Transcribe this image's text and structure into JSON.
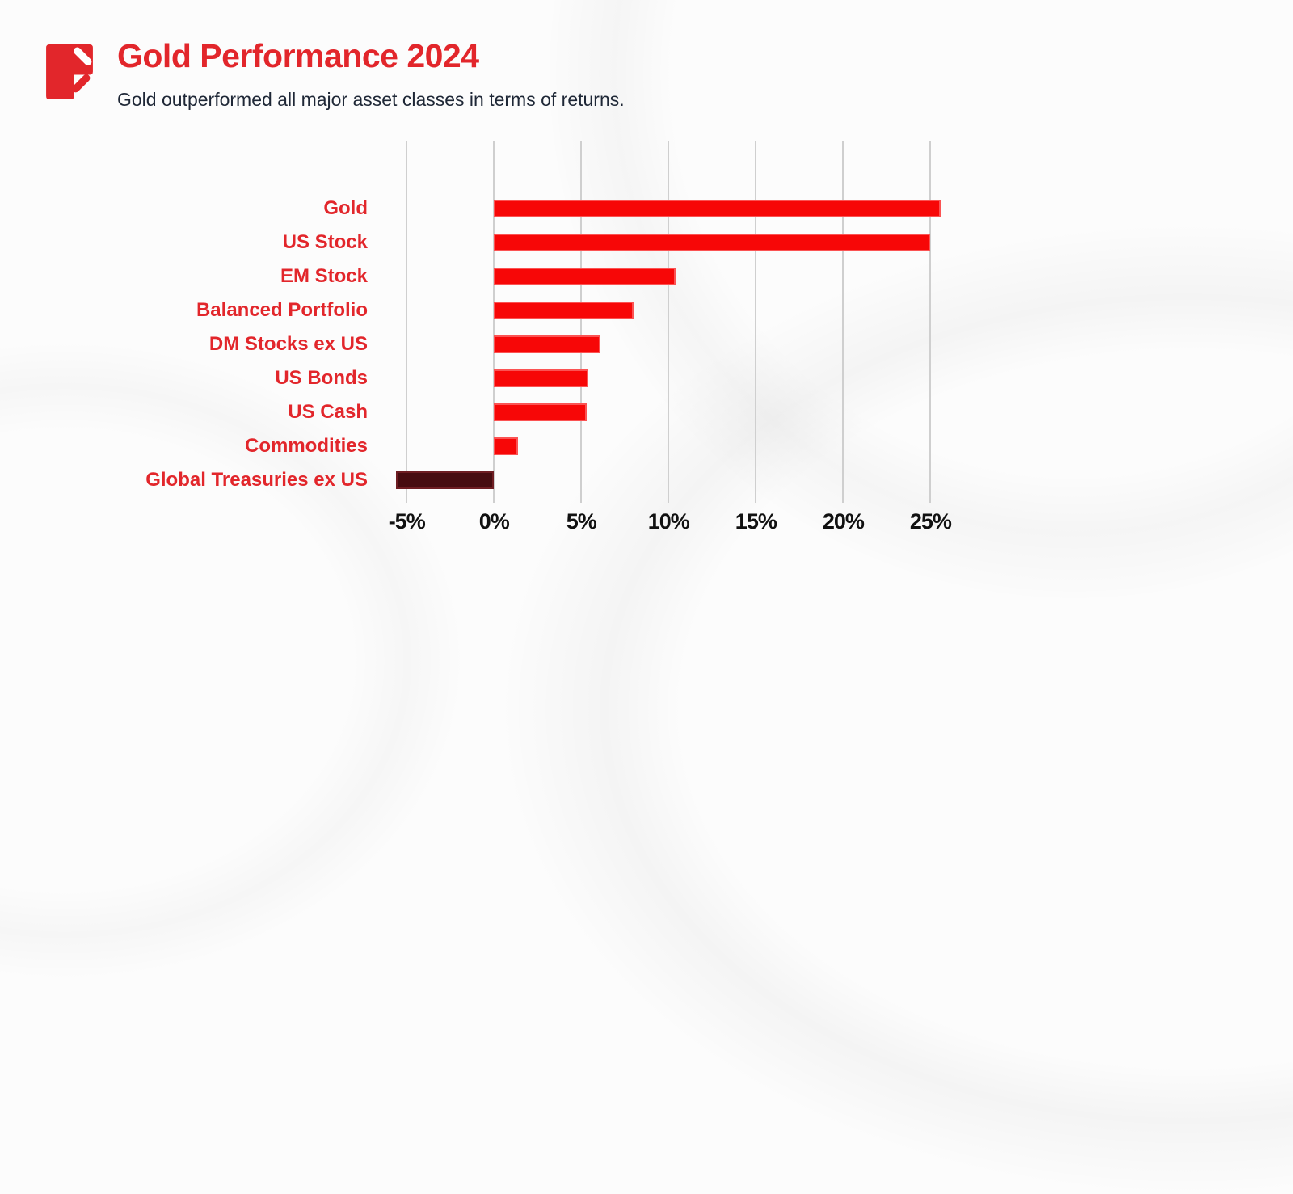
{
  "header": {
    "title": "Gold Performance 2024",
    "subtitle": "Gold outperformed all major asset classes in terms of returns.",
    "logo_icon": "pen-document-logo"
  },
  "colors": {
    "accent_red": "#e2262b",
    "bar_positive": "#f70707",
    "bar_positive_border": "#fb5353",
    "bar_negative": "#470c10",
    "bar_negative_border": "#6e1d22",
    "subtitle_text": "#1e2736",
    "axis_text": "#111111",
    "gridline": "#cfcfcf",
    "background": "#fcfcfc"
  },
  "chart_data": {
    "type": "bar",
    "orientation": "horizontal",
    "title": "Gold Performance 2024",
    "categories": [
      "Gold",
      "US Stock",
      "EM Stock",
      "Balanced Portfolio",
      "DM Stocks ex US",
      "US Bonds",
      "US Cash",
      "Commodities",
      "Global Treasuries ex US"
    ],
    "values": [
      25.6,
      25.0,
      10.4,
      8.0,
      6.1,
      5.4,
      5.3,
      1.4,
      -5.6
    ],
    "x_ticks": [
      -5,
      0,
      5,
      10,
      15,
      20,
      25
    ],
    "x_tick_labels": [
      "-5%",
      "0%",
      "5%",
      "10%",
      "15%",
      "20%",
      "25%"
    ],
    "xlim": [
      -7,
      27.25
    ],
    "grid": true,
    "legend": false,
    "xlabel": "",
    "ylabel": ""
  }
}
